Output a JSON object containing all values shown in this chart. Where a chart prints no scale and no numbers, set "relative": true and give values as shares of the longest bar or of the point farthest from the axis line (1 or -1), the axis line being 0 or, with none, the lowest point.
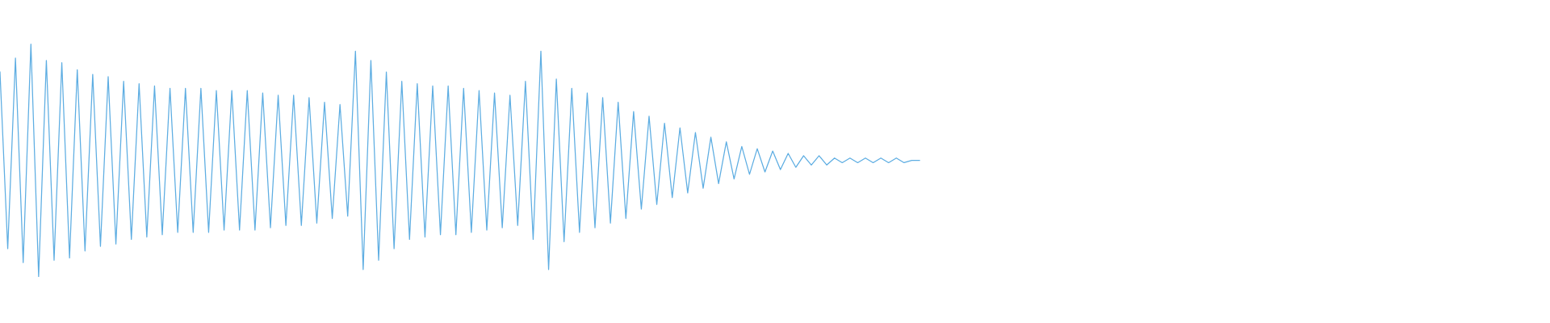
{
  "chart_data": {
    "type": "line",
    "relative": true,
    "categories": [
      null,
      null,
      null,
      null,
      null,
      null,
      null,
      null,
      null,
      null,
      null,
      null,
      null,
      null,
      null,
      null,
      null,
      null,
      null,
      null,
      null,
      null,
      null,
      null,
      null,
      null,
      null,
      null,
      null,
      null,
      null,
      null,
      null,
      null,
      null,
      null,
      null,
      null,
      null,
      null,
      null,
      null,
      null,
      null,
      null,
      null,
      null,
      null,
      null,
      null,
      null,
      null,
      null,
      null,
      null,
      null,
      null,
      null,
      null,
      null,
      null,
      null,
      null,
      null,
      null,
      null,
      null,
      null,
      null,
      null,
      null,
      null,
      null,
      null,
      null,
      null,
      null,
      null,
      null,
      null,
      null,
      null,
      null,
      null,
      null,
      null,
      null,
      null,
      null,
      null,
      null,
      null,
      null,
      null,
      null,
      null,
      null,
      null,
      null,
      null,
      null,
      null,
      null,
      null,
      null,
      null,
      null,
      null,
      null,
      null,
      null,
      null,
      null,
      null,
      null,
      null,
      null,
      null,
      null,
      null
    ],
    "series": [
      {
        "color": "#5dade2",
        "values": [
          0.88,
          0.12,
          0.94,
          0.06,
          1.0,
          0.0,
          0.93,
          0.07,
          0.92,
          0.08,
          0.89,
          0.11,
          0.87,
          0.13,
          0.86,
          0.14,
          0.84,
          0.16,
          0.83,
          0.17,
          0.82,
          0.18,
          0.81,
          0.19,
          0.81,
          0.19,
          0.81,
          0.19,
          0.8,
          0.2,
          0.8,
          0.2,
          0.8,
          0.2,
          0.79,
          0.21,
          0.78,
          0.22,
          0.78,
          0.22,
          0.77,
          0.23,
          0.75,
          0.25,
          0.74,
          0.26,
          0.97,
          0.03,
          0.93,
          0.07,
          0.88,
          0.12,
          0.84,
          0.16,
          0.83,
          0.17,
          0.82,
          0.18,
          0.82,
          0.18,
          0.81,
          0.19,
          0.8,
          0.2,
          0.79,
          0.21,
          0.78,
          0.22,
          0.84,
          0.16,
          0.97,
          0.03,
          0.85,
          0.15,
          0.81,
          0.19,
          0.79,
          0.21,
          0.77,
          0.23,
          0.75,
          0.25,
          0.71,
          0.29,
          0.69,
          0.31,
          0.66,
          0.34,
          0.64,
          0.36,
          0.62,
          0.38,
          0.6,
          0.4,
          0.58,
          0.42,
          0.56,
          0.44,
          0.55,
          0.45,
          0.54,
          0.46,
          0.53,
          0.47,
          0.52,
          0.48,
          0.52,
          0.48,
          0.51,
          0.49,
          0.51,
          0.49,
          0.51,
          0.49,
          0.51,
          0.49,
          0.51,
          0.49,
          0.5,
          0.5
        ]
      }
    ]
  }
}
